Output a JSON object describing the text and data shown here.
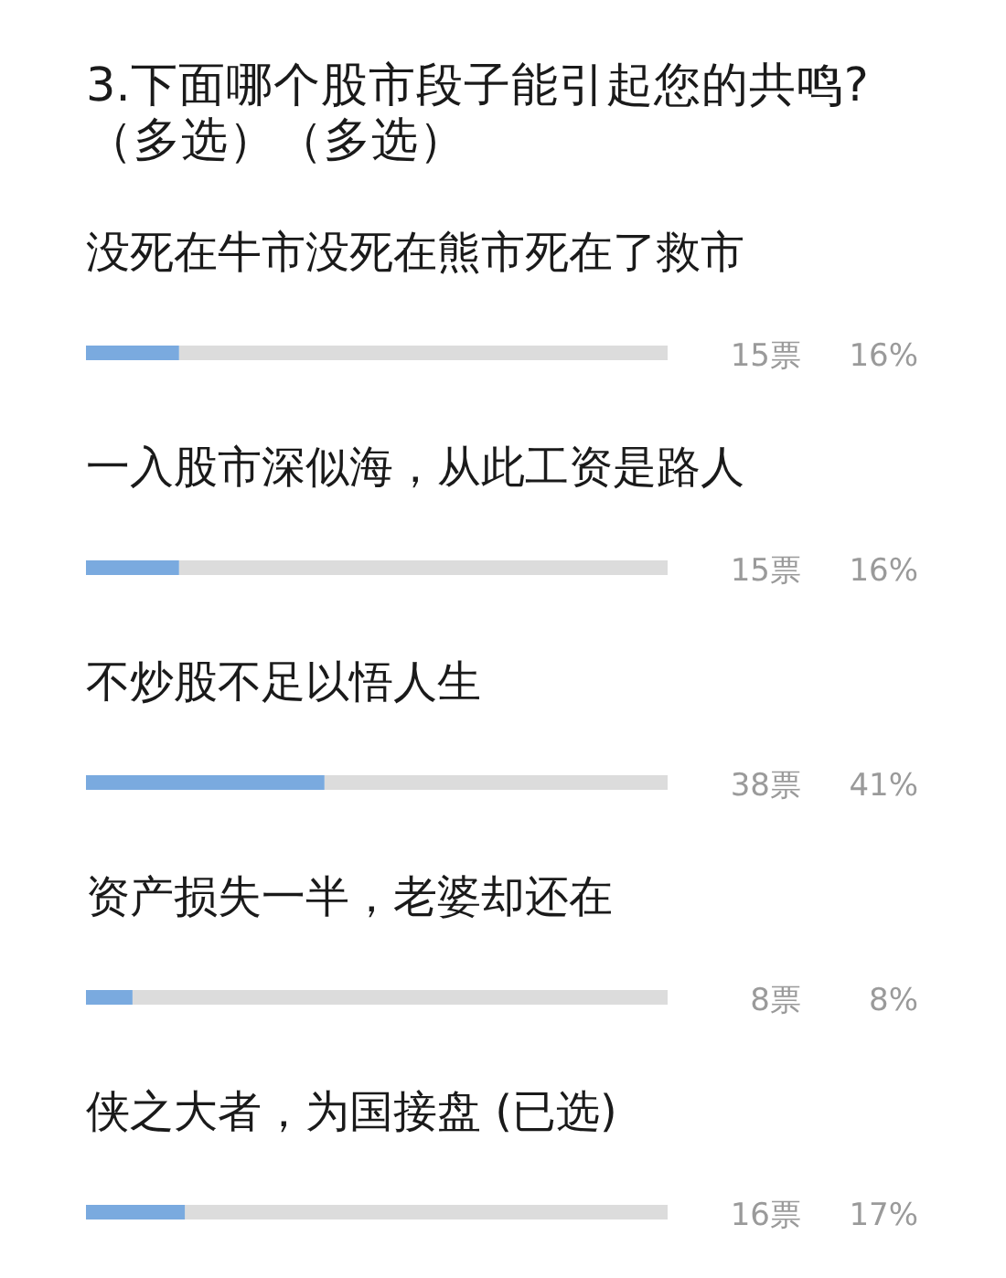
{
  "chart_data": {
    "type": "bar",
    "orientation": "horizontal",
    "title": "3.下面哪个股市段子能引起您的共鸣?（多选）（多选）",
    "categories": [
      "没死在牛市没死在熊市死在了救市",
      "一入股市深似海，从此工资是路人",
      "不炒股不足以悟人生",
      "资产损失一半，老婆却还在",
      "侠之大者，为国接盘 (已选)"
    ],
    "values": [
      16,
      16,
      41,
      8,
      17
    ],
    "color": "#7aaadf",
    "value_labels": [
      "16%",
      "16%",
      "41%",
      "8%",
      "17%"
    ],
    "xlim": [
      0,
      100
    ],
    "tick_labels": "y",
    "annotations": [
      "15票",
      "15票",
      "38票",
      "8票",
      "16票"
    ]
  }
}
